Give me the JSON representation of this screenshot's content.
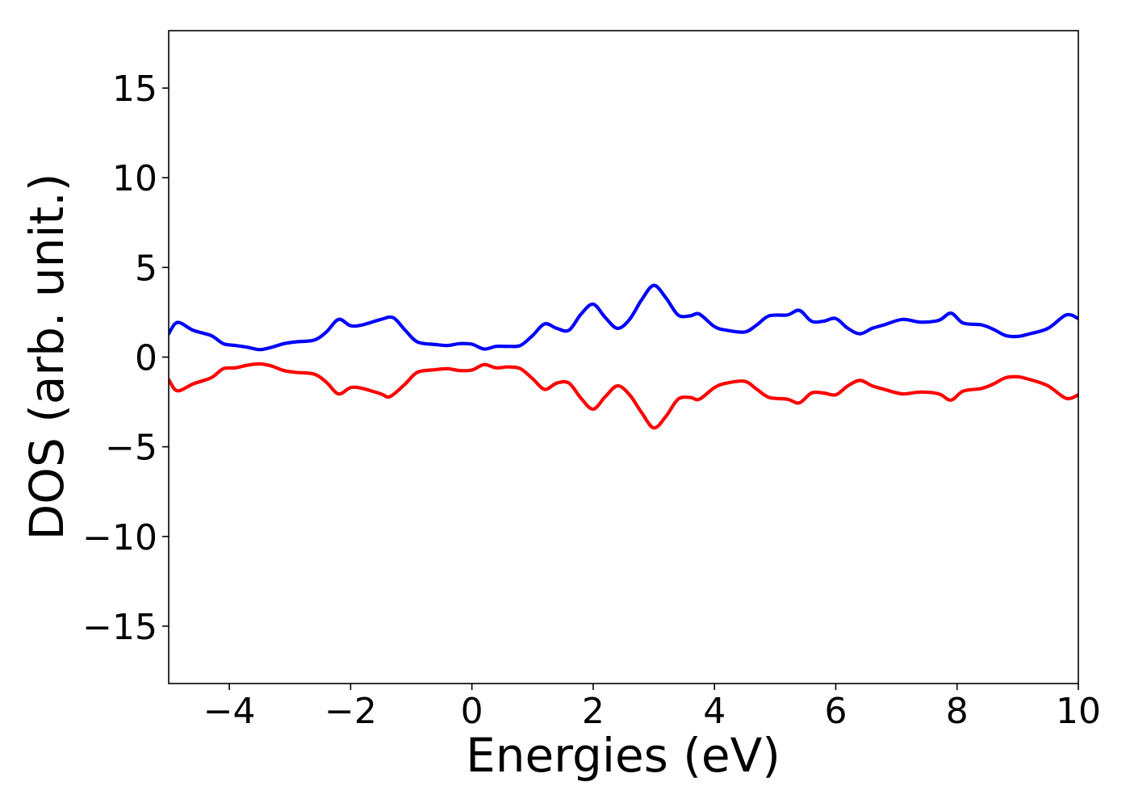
{
  "chart_data": {
    "type": "line",
    "title": "",
    "xlabel": "Energies (eV)",
    "ylabel": "DOS (arb. unit.)",
    "xlim": [
      -5,
      10
    ],
    "ylim": [
      -18.2,
      18.2
    ],
    "xticks": [
      -4,
      -2,
      0,
      2,
      4,
      6,
      8,
      10
    ],
    "xtick_labels": [
      "−4",
      "−2",
      "0",
      "2",
      "4",
      "6",
      "8",
      "10"
    ],
    "yticks": [
      15,
      10,
      5,
      0,
      -5,
      -10,
      -15
    ],
    "ytick_labels": [
      "15",
      "10",
      "5",
      "0",
      "−5",
      "−10",
      "−15"
    ],
    "grid": false,
    "legend": "none",
    "series": [
      {
        "color": "#0000ff",
        "points": [
          [
            -5.0,
            1.3
          ],
          [
            -4.9,
            1.85
          ],
          [
            -4.8,
            1.9
          ],
          [
            -4.6,
            1.5
          ],
          [
            -4.3,
            1.2
          ],
          [
            -4.1,
            0.75
          ],
          [
            -3.9,
            0.65
          ],
          [
            -3.7,
            0.55
          ],
          [
            -3.5,
            0.42
          ],
          [
            -3.3,
            0.55
          ],
          [
            -3.1,
            0.75
          ],
          [
            -2.9,
            0.85
          ],
          [
            -2.6,
            0.95
          ],
          [
            -2.4,
            1.4
          ],
          [
            -2.2,
            2.1
          ],
          [
            -2.0,
            1.75
          ],
          [
            -1.8,
            1.8
          ],
          [
            -1.5,
            2.1
          ],
          [
            -1.3,
            2.2
          ],
          [
            -1.1,
            1.5
          ],
          [
            -0.9,
            0.85
          ],
          [
            -0.6,
            0.7
          ],
          [
            -0.4,
            0.65
          ],
          [
            -0.2,
            0.75
          ],
          [
            0.0,
            0.72
          ],
          [
            0.2,
            0.45
          ],
          [
            0.4,
            0.6
          ],
          [
            0.6,
            0.6
          ],
          [
            0.8,
            0.65
          ],
          [
            1.0,
            1.2
          ],
          [
            1.2,
            1.85
          ],
          [
            1.4,
            1.6
          ],
          [
            1.6,
            1.5
          ],
          [
            1.8,
            2.4
          ],
          [
            2.0,
            2.95
          ],
          [
            2.2,
            2.2
          ],
          [
            2.4,
            1.6
          ],
          [
            2.6,
            2.1
          ],
          [
            2.8,
            3.2
          ],
          [
            3.0,
            4.0
          ],
          [
            3.2,
            3.3
          ],
          [
            3.4,
            2.35
          ],
          [
            3.6,
            2.3
          ],
          [
            3.75,
            2.4
          ],
          [
            4.0,
            1.7
          ],
          [
            4.2,
            1.5
          ],
          [
            4.5,
            1.4
          ],
          [
            4.7,
            1.8
          ],
          [
            4.9,
            2.3
          ],
          [
            5.2,
            2.35
          ],
          [
            5.4,
            2.6
          ],
          [
            5.6,
            2.0
          ],
          [
            5.8,
            2.0
          ],
          [
            6.0,
            2.15
          ],
          [
            6.2,
            1.6
          ],
          [
            6.4,
            1.3
          ],
          [
            6.6,
            1.6
          ],
          [
            6.8,
            1.8
          ],
          [
            7.1,
            2.1
          ],
          [
            7.4,
            1.95
          ],
          [
            7.7,
            2.05
          ],
          [
            7.9,
            2.45
          ],
          [
            8.1,
            1.9
          ],
          [
            8.4,
            1.8
          ],
          [
            8.6,
            1.55
          ],
          [
            8.8,
            1.2
          ],
          [
            9.0,
            1.15
          ],
          [
            9.2,
            1.3
          ],
          [
            9.5,
            1.6
          ],
          [
            9.8,
            2.35
          ],
          [
            10.0,
            2.15
          ]
        ]
      },
      {
        "color": "#ff0000",
        "points": [
          [
            -5.0,
            -1.25
          ],
          [
            -4.9,
            -1.8
          ],
          [
            -4.8,
            -1.85
          ],
          [
            -4.6,
            -1.5
          ],
          [
            -4.3,
            -1.15
          ],
          [
            -4.1,
            -0.65
          ],
          [
            -3.9,
            -0.6
          ],
          [
            -3.7,
            -0.45
          ],
          [
            -3.5,
            -0.38
          ],
          [
            -3.3,
            -0.5
          ],
          [
            -3.1,
            -0.75
          ],
          [
            -2.9,
            -0.85
          ],
          [
            -2.6,
            -0.95
          ],
          [
            -2.4,
            -1.4
          ],
          [
            -2.2,
            -2.05
          ],
          [
            -2.0,
            -1.7
          ],
          [
            -1.8,
            -1.75
          ],
          [
            -1.5,
            -2.05
          ],
          [
            -1.35,
            -2.2
          ],
          [
            -1.1,
            -1.5
          ],
          [
            -0.9,
            -0.85
          ],
          [
            -0.6,
            -0.7
          ],
          [
            -0.4,
            -0.65
          ],
          [
            -0.2,
            -0.75
          ],
          [
            0.0,
            -0.72
          ],
          [
            0.2,
            -0.42
          ],
          [
            0.4,
            -0.6
          ],
          [
            0.6,
            -0.55
          ],
          [
            0.8,
            -0.65
          ],
          [
            1.0,
            -1.2
          ],
          [
            1.2,
            -1.8
          ],
          [
            1.4,
            -1.45
          ],
          [
            1.6,
            -1.45
          ],
          [
            1.8,
            -2.3
          ],
          [
            2.0,
            -2.9
          ],
          [
            2.2,
            -2.2
          ],
          [
            2.4,
            -1.6
          ],
          [
            2.6,
            -2.1
          ],
          [
            2.8,
            -3.1
          ],
          [
            3.0,
            -3.95
          ],
          [
            3.2,
            -3.3
          ],
          [
            3.4,
            -2.35
          ],
          [
            3.6,
            -2.25
          ],
          [
            3.75,
            -2.35
          ],
          [
            4.0,
            -1.7
          ],
          [
            4.2,
            -1.45
          ],
          [
            4.5,
            -1.35
          ],
          [
            4.7,
            -1.8
          ],
          [
            4.9,
            -2.25
          ],
          [
            5.2,
            -2.35
          ],
          [
            5.4,
            -2.55
          ],
          [
            5.6,
            -2.0
          ],
          [
            5.8,
            -2.0
          ],
          [
            6.0,
            -2.1
          ],
          [
            6.2,
            -1.6
          ],
          [
            6.4,
            -1.3
          ],
          [
            6.6,
            -1.6
          ],
          [
            6.8,
            -1.8
          ],
          [
            7.1,
            -2.05
          ],
          [
            7.4,
            -1.95
          ],
          [
            7.7,
            -2.05
          ],
          [
            7.9,
            -2.4
          ],
          [
            8.1,
            -1.9
          ],
          [
            8.4,
            -1.75
          ],
          [
            8.6,
            -1.5
          ],
          [
            8.8,
            -1.15
          ],
          [
            9.0,
            -1.1
          ],
          [
            9.2,
            -1.25
          ],
          [
            9.5,
            -1.6
          ],
          [
            9.8,
            -2.3
          ],
          [
            10.0,
            -2.1
          ]
        ]
      }
    ]
  }
}
